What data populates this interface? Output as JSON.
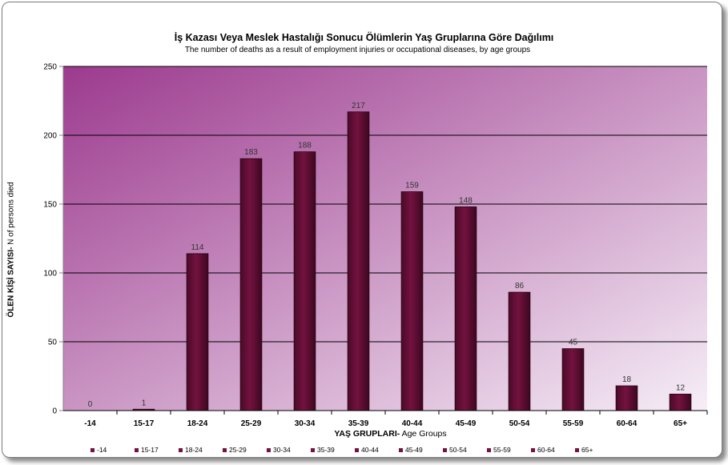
{
  "chart_data": {
    "type": "bar",
    "title": "İş Kazası  Veya Meslek Hastalığı Sonucu Ölümlerin Yaş Gruplarına Göre Dağılımı",
    "subtitle": "The number of deaths as a result of employment injuries or occupational diseases, by age groups",
    "ylabel_bold": "ÖLEN KİŞİ SAYISI-",
    "ylabel_normal": " N of persons died",
    "xlabel_bold": "YAŞ GRUPLARI-",
    "xlabel_normal": " Age Groups",
    "categories": [
      "-14",
      "15-17",
      "18-24",
      "25-29",
      "30-34",
      "35-39",
      "40-44",
      "45-49",
      "50-54",
      "55-59",
      "60-64",
      "65+"
    ],
    "values": [
      0,
      1,
      114,
      183,
      188,
      217,
      159,
      148,
      86,
      45,
      18,
      12
    ],
    "ylim": [
      0,
      250
    ],
    "yticks": [
      0,
      50,
      100,
      150,
      200,
      250
    ],
    "grid": true,
    "legend_position": "bottom",
    "legend_entries": [
      "-14",
      "15-17",
      "18-24",
      "25-29",
      "30-34",
      "35-39",
      "40-44",
      "45-49",
      "50-54",
      "55-59",
      "60-64",
      "65+"
    ],
    "bar_color": "#73123f",
    "plot_bg_start": "#9c3a8e",
    "plot_bg_end": "#f6eef7"
  }
}
